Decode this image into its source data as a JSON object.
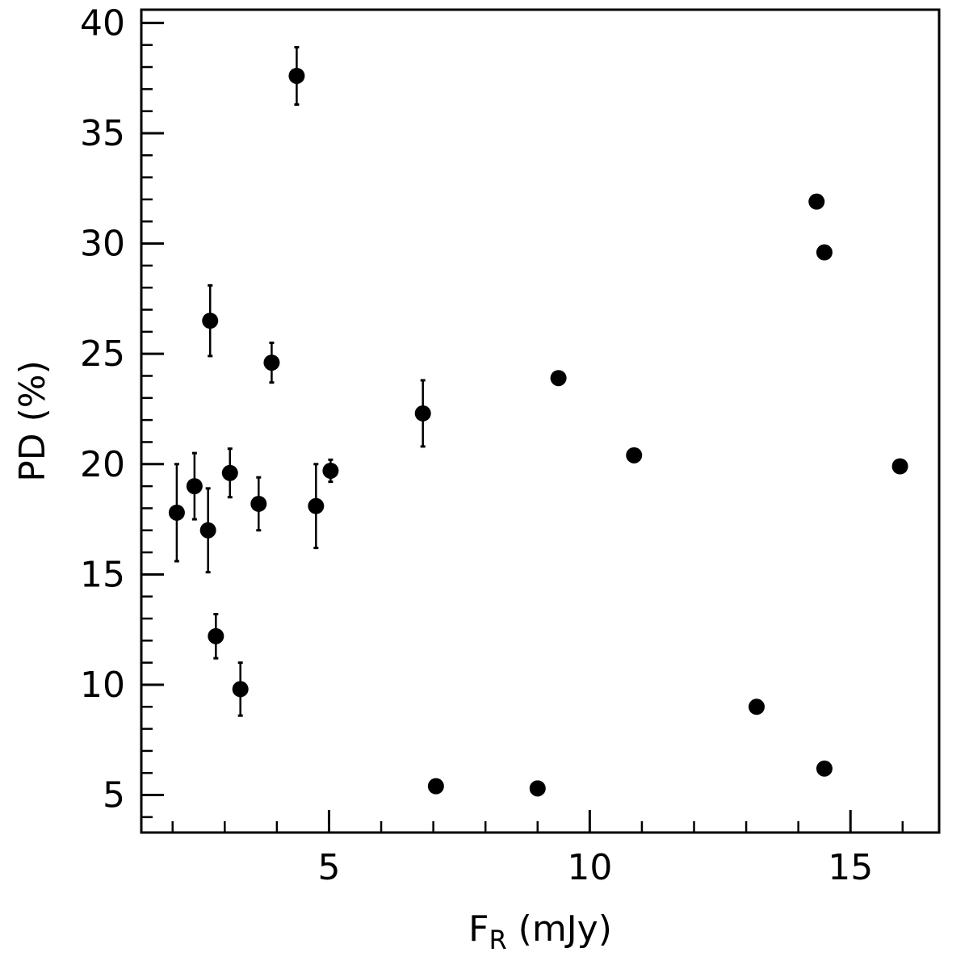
{
  "chart_data": {
    "type": "scatter",
    "xlabel": "F",
    "xlabel_sub": "R",
    "xlabel_unit": " (mJy)",
    "ylabel": "PD (%)",
    "xlim": [
      1.4,
      16.7
    ],
    "ylim": [
      3.3,
      40.6
    ],
    "x_ticks": [
      5,
      10,
      15
    ],
    "y_ticks": [
      5,
      10,
      15,
      20,
      25,
      30,
      35,
      40
    ],
    "x_minor_step": 1,
    "y_minor_step": 1,
    "grid": false,
    "points": [
      {
        "x": 2.08,
        "y": 17.8,
        "err": 2.2
      },
      {
        "x": 2.42,
        "y": 19.0,
        "err": 1.5
      },
      {
        "x": 2.68,
        "y": 17.0,
        "err": 1.9
      },
      {
        "x": 2.72,
        "y": 26.5,
        "err": 1.6
      },
      {
        "x": 2.83,
        "y": 12.2,
        "err": 1.0
      },
      {
        "x": 3.1,
        "y": 19.6,
        "err": 1.1
      },
      {
        "x": 3.3,
        "y": 9.8,
        "err": 1.2
      },
      {
        "x": 3.65,
        "y": 18.2,
        "err": 1.2
      },
      {
        "x": 3.9,
        "y": 24.6,
        "err": 0.9
      },
      {
        "x": 4.38,
        "y": 37.6,
        "err": 1.3
      },
      {
        "x": 4.75,
        "y": 18.1,
        "err": 1.9
      },
      {
        "x": 5.03,
        "y": 19.7,
        "err": 0.5
      },
      {
        "x": 6.8,
        "y": 22.3,
        "err": 1.5
      },
      {
        "x": 7.05,
        "y": 5.4,
        "err": 0.3
      },
      {
        "x": 9.0,
        "y": 5.3,
        "err": 0.3
      },
      {
        "x": 9.4,
        "y": 23.9,
        "err": 0
      },
      {
        "x": 10.85,
        "y": 20.4,
        "err": 0
      },
      {
        "x": 13.2,
        "y": 9.0,
        "err": 0
      },
      {
        "x": 14.35,
        "y": 31.9,
        "err": 0
      },
      {
        "x": 14.5,
        "y": 29.6,
        "err": 0
      },
      {
        "x": 14.5,
        "y": 6.2,
        "err": 0
      },
      {
        "x": 15.95,
        "y": 19.9,
        "err": 0
      }
    ],
    "marker_color": "#000000"
  }
}
